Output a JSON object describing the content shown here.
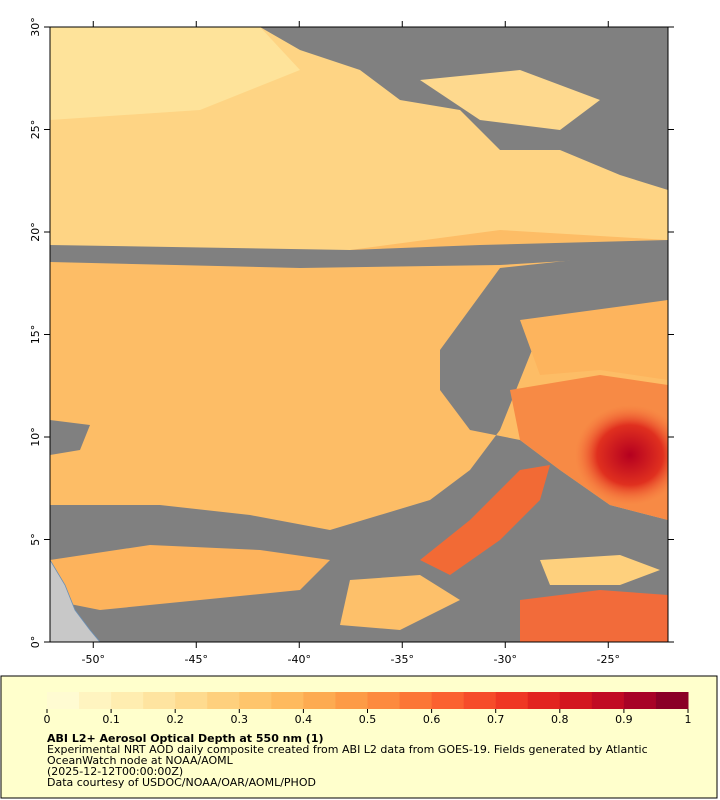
{
  "map": {
    "xlim": [
      -52.1,
      -22.1
    ],
    "ylim": [
      0,
      30
    ],
    "xticks": [
      {
        "value": -50,
        "label": "-50°"
      },
      {
        "value": -45,
        "label": "-45°"
      },
      {
        "value": -40,
        "label": "-40°"
      },
      {
        "value": -35,
        "label": "-35°"
      },
      {
        "value": -30,
        "label": "-30°"
      },
      {
        "value": -25,
        "label": "-25°"
      }
    ],
    "yticks": [
      {
        "value": 0,
        "label": "0°"
      },
      {
        "value": 5,
        "label": "5°"
      },
      {
        "value": 10,
        "label": "10°"
      },
      {
        "value": 15,
        "label": "15°"
      },
      {
        "value": 20,
        "label": "20°"
      },
      {
        "value": 25,
        "label": "25°"
      },
      {
        "value": 30,
        "label": "30°"
      }
    ]
  },
  "colorbar": {
    "range": [
      0,
      1
    ],
    "ticks": [
      0,
      0.1,
      0.2,
      0.3,
      0.4,
      0.5,
      0.6,
      0.7,
      0.8,
      0.9,
      1
    ],
    "colors": [
      "#fffbd2",
      "#fff4c0",
      "#ffedb0",
      "#fee4a0",
      "#fedb8f",
      "#fed07d",
      "#fec56c",
      "#feba5e",
      "#fdab51",
      "#fd9b46",
      "#fd8a3e",
      "#fc7636",
      "#fb6130",
      "#f64c2a",
      "#ef3724",
      "#e2241f",
      "#d3161f",
      "#c10b23",
      "#a80326",
      "#8a0026"
    ]
  },
  "legend": {
    "title": "ABI L2+ Aerosol Optical Depth at 550 nm (1)",
    "lines": [
      "Experimental NRT AOD daily composite created from ABI L2 data from GOES-19. Fields generated by Atlantic",
      "OceanWatch node at NOAA/AOML",
      "(2025-12-12T00:00:00Z)",
      "Data courtesy of USDOC/NOAA/OAR/AOML/PHOD"
    ]
  }
}
